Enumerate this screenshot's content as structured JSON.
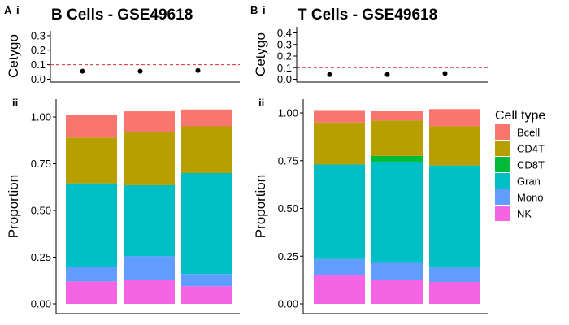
{
  "panels": [
    {
      "letter": "A",
      "sub_top": "i",
      "sub_bottom": "ii",
      "title": "B Cells - GSE49618"
    },
    {
      "letter": "B",
      "sub_top": "i",
      "sub_bottom": "ii",
      "title": "T Cells - GSE49618"
    }
  ],
  "legend": {
    "title": "Cell type",
    "position": "right",
    "items": [
      {
        "name": "Bcell",
        "color": "#F8766D"
      },
      {
        "name": "CD4T",
        "color": "#B79F00"
      },
      {
        "name": "CD8T",
        "color": "#00BA38"
      },
      {
        "name": "Gran",
        "color": "#00BFC4"
      },
      {
        "name": "Mono",
        "color": "#619CFF"
      },
      {
        "name": "NK",
        "color": "#F564E3"
      }
    ]
  },
  "chart_data": [
    {
      "type": "scatter",
      "panel": "A i",
      "ylabel": "Cetygo",
      "ylim": [
        0,
        0.33
      ],
      "yticks": [
        "0.0",
        "0.1",
        "0.2",
        "0.3"
      ],
      "ytick_values": [
        0.0,
        0.1,
        0.2,
        0.3
      ],
      "x": [
        1,
        2,
        3
      ],
      "y": [
        0.055,
        0.055,
        0.06
      ],
      "threshold": 0.1,
      "threshold_color": "#E0303A"
    },
    {
      "type": "bar",
      "stacked": true,
      "panel": "A ii",
      "ylabel": "Proportion",
      "ylim": [
        0,
        1.03
      ],
      "yticks": [
        "0.00",
        "0.25",
        "0.50",
        "0.75",
        "1.00"
      ],
      "ytick_values": [
        0,
        0.25,
        0.5,
        0.75,
        1.0
      ],
      "categories": [
        "1",
        "2",
        "3"
      ],
      "series": [
        {
          "name": "NK",
          "values": [
            0.12,
            0.13,
            0.095
          ]
        },
        {
          "name": "Mono",
          "values": [
            0.08,
            0.125,
            0.065
          ]
        },
        {
          "name": "Gran",
          "values": [
            0.445,
            0.38,
            0.54
          ]
        },
        {
          "name": "CD8T",
          "values": [
            0.0,
            0.0,
            0.0
          ]
        },
        {
          "name": "CD4T",
          "values": [
            0.245,
            0.285,
            0.25
          ]
        },
        {
          "name": "Bcell",
          "values": [
            0.12,
            0.11,
            0.09
          ]
        }
      ]
    },
    {
      "type": "scatter",
      "panel": "B i",
      "ylabel": "Cetygo",
      "ylim": [
        0,
        0.42
      ],
      "yticks": [
        "0.0",
        "0.1",
        "0.2",
        "0.3",
        "0.4"
      ],
      "ytick_values": [
        0.0,
        0.1,
        0.2,
        0.3,
        0.4
      ],
      "x": [
        1,
        2,
        3
      ],
      "y": [
        0.04,
        0.04,
        0.05
      ],
      "threshold": 0.1,
      "threshold_color": "#E0303A"
    },
    {
      "type": "bar",
      "stacked": true,
      "panel": "B ii",
      "ylabel": "Proportion",
      "ylim": [
        0,
        1.03
      ],
      "yticks": [
        "0.00",
        "0.25",
        "0.50",
        "0.75",
        "1.00"
      ],
      "ytick_values": [
        0,
        0.25,
        0.5,
        0.75,
        1.0
      ],
      "categories": [
        "1",
        "2",
        "3"
      ],
      "series": [
        {
          "name": "NK",
          "values": [
            0.15,
            0.125,
            0.115
          ]
        },
        {
          "name": "Mono",
          "values": [
            0.085,
            0.09,
            0.075
          ]
        },
        {
          "name": "Gran",
          "values": [
            0.495,
            0.53,
            0.535
          ]
        },
        {
          "name": "CD8T",
          "values": [
            0.0,
            0.03,
            0.0
          ]
        },
        {
          "name": "CD4T",
          "values": [
            0.22,
            0.185,
            0.205
          ]
        },
        {
          "name": "Bcell",
          "values": [
            0.065,
            0.05,
            0.09
          ]
        }
      ]
    }
  ]
}
